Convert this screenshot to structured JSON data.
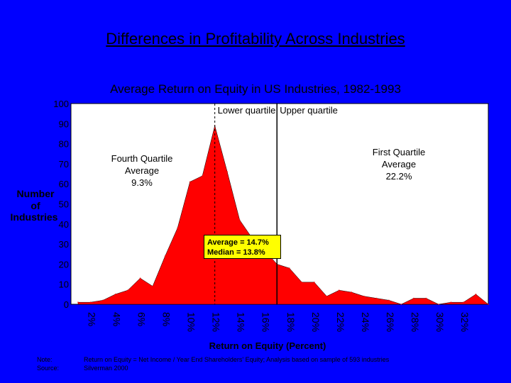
{
  "slide_title": "Differences in Profitability Across Industries",
  "chart_data": {
    "type": "area",
    "title": "Average Return on Equity in US Industries, 1982-1993",
    "xlabel": "Return on Equity (Percent)",
    "ylabel_lines": [
      "Number",
      "of",
      "Industries"
    ],
    "ylim": [
      0,
      100
    ],
    "yticks": [
      0,
      10,
      20,
      30,
      40,
      50,
      60,
      70,
      80,
      90,
      100
    ],
    "xlim": [
      0,
      33
    ],
    "xticks": [
      "2%",
      "4%",
      "6%",
      "8%",
      "10%",
      "12%",
      "14%",
      "16%",
      "18%",
      "20%",
      "22%",
      "24%",
      "26%",
      "28%",
      "30%",
      "32%"
    ],
    "series": [
      {
        "name": "Number of Industries",
        "color": "#ff0000",
        "x": [
          0,
          1,
          2,
          3,
          4,
          5,
          6,
          7,
          8,
          9,
          10,
          11,
          12,
          13,
          14,
          15,
          16,
          17,
          18,
          19,
          20,
          21,
          22,
          23,
          24,
          25,
          26,
          27,
          28,
          29,
          30,
          31,
          32,
          33
        ],
        "y": [
          1,
          1,
          2,
          5,
          7,
          13,
          9,
          24,
          38,
          61,
          64,
          89,
          66,
          42,
          33,
          27,
          20,
          18,
          11,
          11,
          4,
          7,
          6,
          4,
          3,
          2,
          0,
          3,
          3,
          0,
          1,
          1,
          5,
          0
        ]
      }
    ],
    "quartile_lines": [
      {
        "x": 11,
        "label": "Lower quartile"
      },
      {
        "x": 16,
        "label": "Upper quartile"
      }
    ],
    "annotations": {
      "fourth_quartile": [
        "Fourth Quartile",
        "Average",
        "9.3%"
      ],
      "first_quartile": [
        "First Quartile",
        "Average",
        "22.2%"
      ],
      "average": "Average = 14.7%",
      "median": "Median = 13.8%"
    }
  },
  "notes": [
    {
      "key": "Note:",
      "value": "Return on Equity = Net Income / Year End Shareholders' Equity; Analysis based on sample of 593 industries"
    },
    {
      "key": "Source:",
      "value": "Silverman 2000"
    }
  ]
}
